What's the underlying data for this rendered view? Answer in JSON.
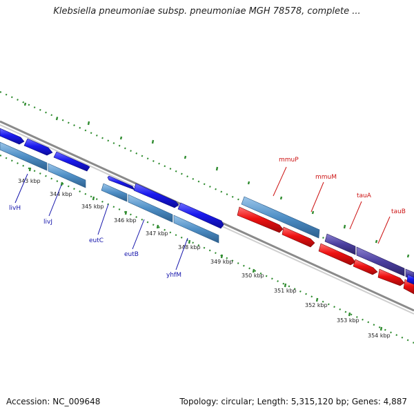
{
  "header": {
    "title": "Klebsiella pneumoniae subsp. pneumoniae MGH 78578, complete ..."
  },
  "footer": {
    "accession": "Accession: NC_009648",
    "stats": "Topology: circular; Length: 5,315,120 bp; Genes: 4,887"
  },
  "colors": {
    "tick_green": "#2e8b2e",
    "backbone": "#8a8a8a",
    "cds_blue": "#1a1aee",
    "gene_steelblue": "#4f8fc6",
    "cds_red": "#ee1111",
    "gene_indigo": "#4b3f9f",
    "label_blue": "#1111aa",
    "label_red": "#cc1111"
  },
  "map": {
    "position_labels": [
      "343 kbp",
      "344 kbp",
      "345 kbp",
      "346 kbp",
      "347 kbp",
      "348 kbp",
      "349 kbp",
      "350 kbp",
      "351 kbp",
      "352 kbp",
      "353 kbp",
      "354 kbp"
    ],
    "gene_labels": {
      "livH": "livH",
      "livJ": "livJ",
      "eutC": "eutC",
      "eutB": "eutB",
      "yhfM": "yhfM",
      "mmuP": "mmuP",
      "mmuM": "mmuM",
      "tauA": "tauA",
      "tauB": "tauB"
    }
  }
}
